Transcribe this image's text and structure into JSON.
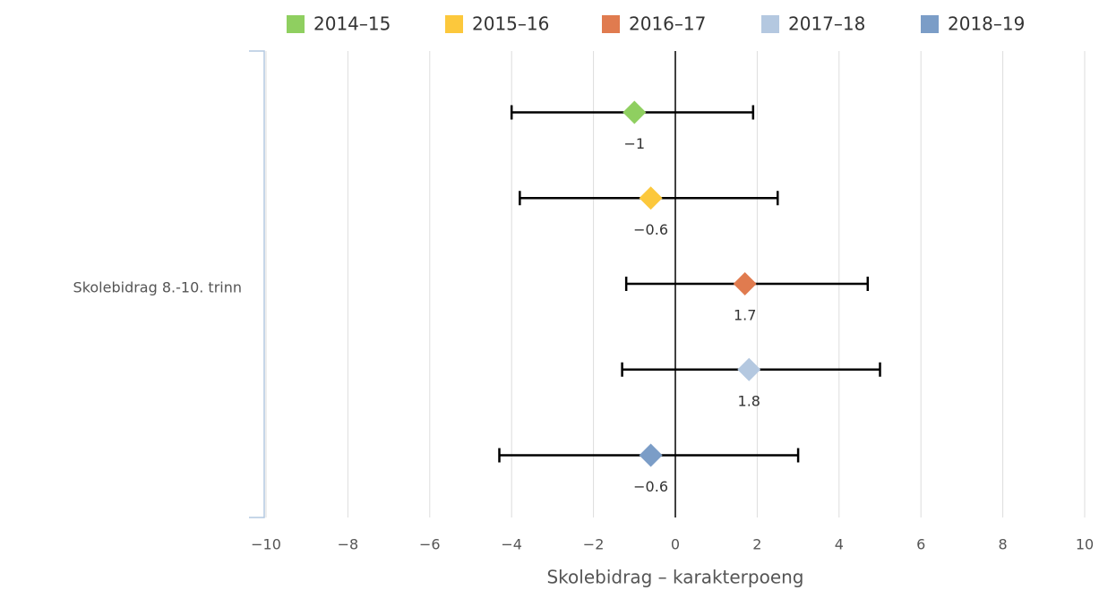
{
  "chart_data": {
    "type": "errorbar",
    "categories": [
      "Skolebidrag 8.-10. trinn"
    ],
    "xlabel": "Skolebidrag – karakterpoeng",
    "xlim": [
      -10,
      10
    ],
    "xticks": [
      {
        "value": -10,
        "label": "−10"
      },
      {
        "value": -8,
        "label": "−8"
      },
      {
        "value": -6,
        "label": "−6"
      },
      {
        "value": -4,
        "label": "−4"
      },
      {
        "value": -2,
        "label": "−2"
      },
      0,
      2,
      4,
      6,
      8,
      10
    ],
    "grid": true,
    "legend": "top",
    "series": [
      {
        "name": "2014–15",
        "color": "#8fcf60",
        "values": [
          -1
        ],
        "value_labels": [
          "−1"
        ],
        "low": [
          -4.0
        ],
        "high": [
          1.9
        ]
      },
      {
        "name": "2015–16",
        "color": "#fcc83c",
        "values": [
          -0.6
        ],
        "value_labels": [
          "−0.6"
        ],
        "low": [
          -3.8
        ],
        "high": [
          2.5
        ]
      },
      {
        "name": "2016–17",
        "color": "#e07b4f",
        "values": [
          1.7
        ],
        "value_labels": [
          "1.7"
        ],
        "low": [
          -1.2
        ],
        "high": [
          4.7
        ]
      },
      {
        "name": "2017–18",
        "color": "#b4c8e0",
        "values": [
          1.8
        ],
        "value_labels": [
          "1.8"
        ],
        "low": [
          -1.3
        ],
        "high": [
          5.0
        ]
      },
      {
        "name": "2018–19",
        "color": "#7b9dc7",
        "values": [
          -0.6
        ],
        "value_labels": [
          "−0.6"
        ],
        "low": [
          -4.3
        ],
        "high": [
          3.0
        ]
      }
    ]
  }
}
